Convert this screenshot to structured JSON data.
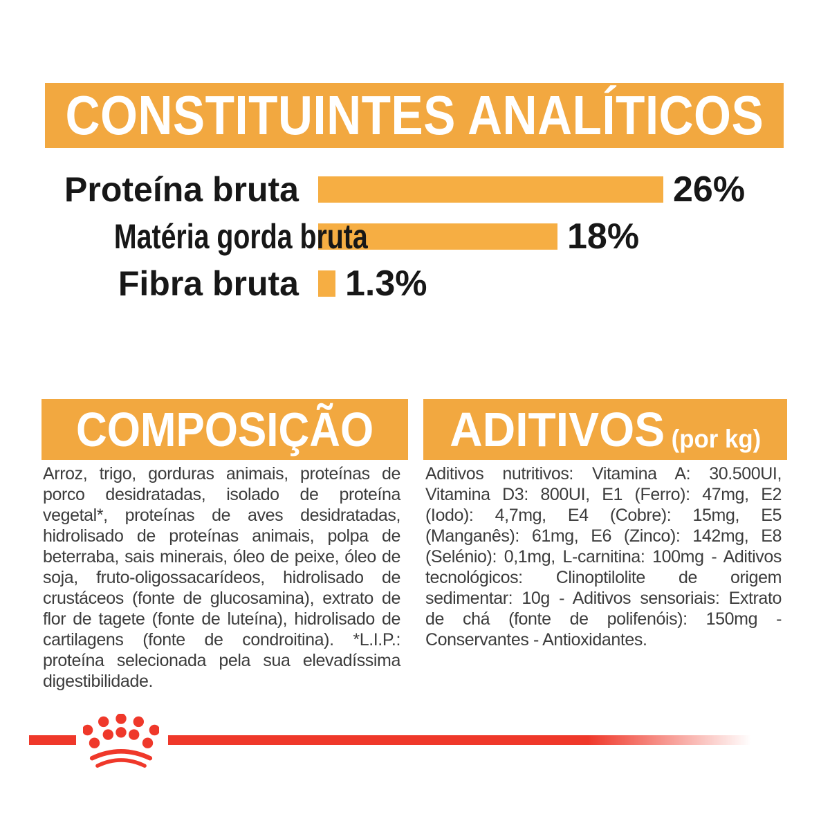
{
  "chart_data": {
    "type": "bar",
    "orientation": "horizontal",
    "title": "CONSTITUINTES ANALÍTICOS",
    "categories": [
      "Proteína bruta",
      "Matéria gorda bruta",
      "Fibra bruta"
    ],
    "values": [
      26,
      18,
      1.3
    ],
    "value_labels": [
      "26%",
      "18%",
      "1.3%"
    ],
    "unit": "%",
    "xlim": [
      0,
      30
    ],
    "grid": false,
    "legend": "none",
    "value_label_position": "end-of-bar",
    "bar_color": "#F6AE43"
  },
  "composicao": {
    "title": "COMPOSIÇÃO",
    "body": "Arroz, trigo, gorduras animais, proteínas de porco desidratadas, isolado de proteína vegetal*, proteínas de aves desidratadas, hidrolisado de proteínas animais, polpa de beterraba, sais minerais, óleo de peixe, óleo de soja, fruto-oligossacarídeos, hidrolisado de crustáceos (fonte de glucosamina), extrato de flor de tagete (fonte de luteína), hidrolisado de cartilagens (fonte de condroitina). *L.I.P.: proteína selecionada pela sua elevadíssima digestibilidade."
  },
  "aditivos": {
    "title": "ADITIVOS",
    "subtitle": "(por kg)",
    "body": "Aditivos nutritivos: Vitamina A: 30.500UI, Vitamina D3: 800UI, E1 (Ferro): 47mg, E2 (Iodo): 4,7mg, E4 (Cobre): 15mg, E5 (Manganês): 61mg, E6 (Zinco): 142mg, E8 (Selénio): 0,1mg, L-carnitina: 100mg - Aditivos tecnológicos: Clinoptilolite de origem sedimentar: 10g - Aditivos sensoriais: Extrato de chá (fonte de polifenóis): 150mg - Conservantes - Antioxidantes."
  },
  "footer": {
    "brand_logo": "royal-canin-crown"
  },
  "colors": {
    "orange": "#F2A840",
    "bar_orange": "#F6AE43",
    "red": "#EF382A",
    "body_ink": "#3C3C3C",
    "white": "#FFFFFF"
  }
}
